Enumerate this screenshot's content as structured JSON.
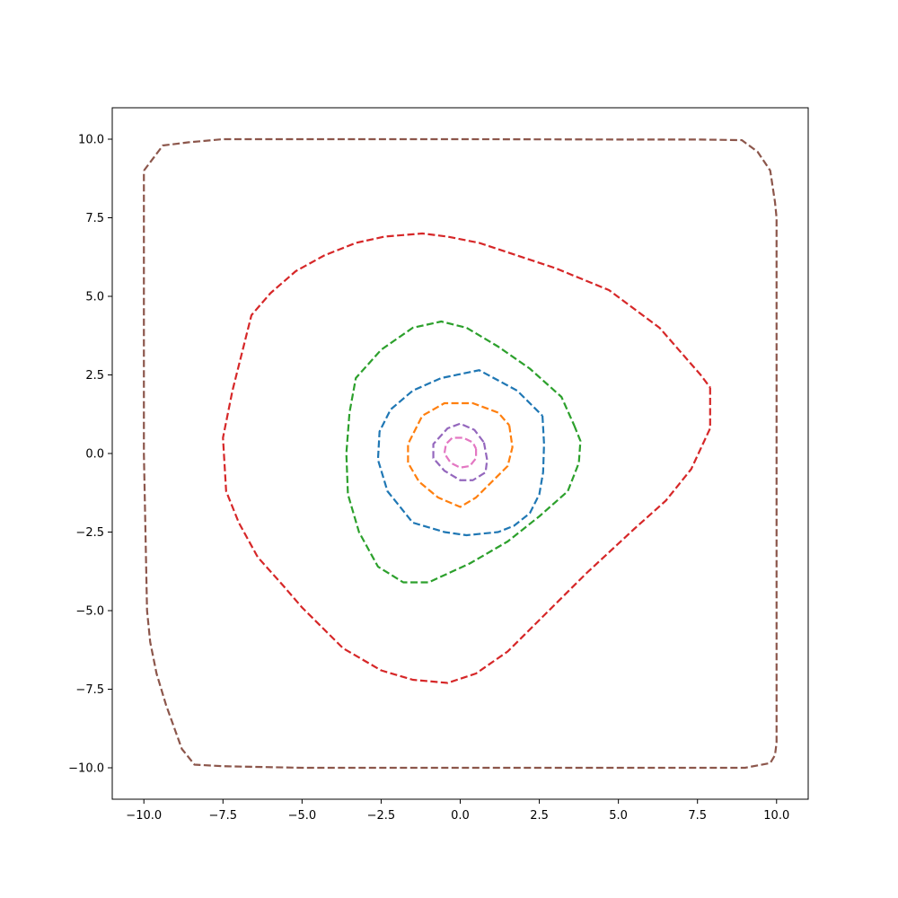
{
  "chart_data": {
    "type": "line",
    "title": "",
    "xlabel": "",
    "ylabel": "",
    "xlim": [
      -11,
      11
    ],
    "ylim": [
      -11,
      11
    ],
    "grid": false,
    "legend": "none",
    "xticks": [
      "−10.0",
      "−7.5",
      "−5.0",
      "−2.5",
      "0.0",
      "2.5",
      "5.0",
      "7.5",
      "10.0"
    ],
    "xtick_values": [
      -10,
      -7.5,
      -5,
      -2.5,
      0,
      2.5,
      5,
      7.5,
      10
    ],
    "yticks": [
      "−10.0",
      "−7.5",
      "−5.0",
      "−2.5",
      "0.0",
      "2.5",
      "5.0",
      "7.5",
      "10.0"
    ],
    "ytick_values": [
      -10,
      -7.5,
      -5,
      -2.5,
      0,
      2.5,
      5,
      7.5,
      10
    ],
    "line_style": "dashed",
    "series": [
      {
        "color": "#1f77b4",
        "x": [
          2.6,
          2.65,
          2.62,
          2.5,
          2.2,
          1.7,
          1.2,
          0.2,
          -0.5,
          -1.5,
          -2.3,
          -2.6,
          -2.55,
          -2.2,
          -1.5,
          -0.6,
          0.6,
          1.8,
          2.6
        ],
        "y": [
          1.2,
          0.3,
          -0.6,
          -1.3,
          -1.9,
          -2.3,
          -2.5,
          -2.6,
          -2.5,
          -2.2,
          -1.2,
          -0.2,
          0.7,
          1.4,
          2.0,
          2.4,
          2.65,
          2.0,
          1.2
        ]
      },
      {
        "color": "#ff7f0e",
        "x": [
          1.55,
          1.65,
          1.5,
          1.0,
          0.5,
          0.0,
          -0.7,
          -1.3,
          -1.65,
          -1.65,
          -1.2,
          -0.5,
          0.4,
          1.2,
          1.55
        ],
        "y": [
          0.9,
          0.2,
          -0.4,
          -0.9,
          -1.4,
          -1.7,
          -1.4,
          -0.9,
          -0.3,
          0.3,
          1.2,
          1.6,
          1.6,
          1.3,
          0.9
        ]
      },
      {
        "color": "#2ca02c",
        "x": [
          3.6,
          3.8,
          3.75,
          3.4,
          2.5,
          1.5,
          0.3,
          -1.0,
          -1.8,
          -2.6,
          -3.2,
          -3.55,
          -3.6,
          -3.5,
          -3.3,
          -2.5,
          -1.5,
          -0.6,
          0.2,
          1.2,
          2.2,
          3.2,
          3.6
        ],
        "y": [
          0.9,
          0.4,
          -0.3,
          -1.2,
          -2.0,
          -2.8,
          -3.5,
          -4.1,
          -4.1,
          -3.6,
          -2.5,
          -1.3,
          0.0,
          1.3,
          2.4,
          3.3,
          4.0,
          4.2,
          4.0,
          3.4,
          2.7,
          1.8,
          0.9
        ]
      },
      {
        "color": "#d62728",
        "x": [
          7.9,
          7.9,
          7.3,
          6.5,
          5.5,
          4.0,
          2.5,
          1.5,
          0.5,
          -0.4,
          -1.5,
          -2.5,
          -3.7,
          -4.4,
          -5.0,
          -5.6,
          -6.4,
          -7.0,
          -7.4,
          -7.5,
          -7.4,
          -7.2,
          -6.6,
          -6.0,
          -5.2,
          -4.3,
          -3.3,
          -2.4,
          -1.2,
          -0.4,
          0.6,
          1.8,
          3.0,
          4.7,
          6.3,
          7.6,
          7.9
        ],
        "y": [
          2.1,
          0.8,
          -0.5,
          -1.5,
          -2.4,
          -3.8,
          -5.3,
          -6.3,
          -7.0,
          -7.3,
          -7.2,
          -6.9,
          -6.2,
          -5.5,
          -4.9,
          -4.2,
          -3.3,
          -2.2,
          -1.2,
          0.5,
          1.0,
          2.0,
          4.4,
          5.1,
          5.8,
          6.3,
          6.7,
          6.9,
          7.0,
          6.9,
          6.7,
          6.3,
          5.9,
          5.2,
          4.0,
          2.5,
          2.1
        ]
      },
      {
        "color": "#9467bd",
        "x": [
          0.75,
          0.85,
          0.8,
          0.4,
          0.0,
          -0.5,
          -0.85,
          -0.85,
          -0.4,
          0.0,
          0.45,
          0.75
        ],
        "y": [
          0.35,
          -0.2,
          -0.6,
          -0.85,
          -0.85,
          -0.55,
          -0.15,
          0.3,
          0.8,
          0.95,
          0.75,
          0.35
        ]
      },
      {
        "color": "#8c564b",
        "x": [
          -10.0,
          -9.4,
          -8.6,
          -7.5,
          -5.0,
          0.0,
          5.0,
          7.5,
          8.9,
          9.4,
          9.8,
          9.95,
          10.0,
          10.0,
          9.95,
          9.8,
          9.0,
          7.5,
          5.0,
          0.0,
          -5.0,
          -7.5,
          -8.4,
          -8.8,
          -9.3,
          -9.6,
          -9.8,
          -9.9,
          -9.95,
          -10.0,
          -10.0
        ],
        "y": [
          9.0,
          9.8,
          9.9,
          10.0,
          10.0,
          10.0,
          9.99,
          9.99,
          9.97,
          9.6,
          9.0,
          8.0,
          7.5,
          -9.2,
          -9.6,
          -9.85,
          -10.0,
          -10.0,
          -10.0,
          -10.0,
          -10.0,
          -9.95,
          -9.9,
          -9.4,
          -8.0,
          -7.0,
          -6.0,
          -5.0,
          -2.5,
          0.0,
          9.0
        ]
      },
      {
        "color": "#e377c2",
        "x": [
          0.5,
          0.5,
          0.3,
          0.0,
          -0.3,
          -0.5,
          -0.45,
          -0.25,
          0.1,
          0.4,
          0.5
        ],
        "y": [
          0.15,
          -0.15,
          -0.4,
          -0.45,
          -0.3,
          0.0,
          0.3,
          0.5,
          0.5,
          0.35,
          0.15
        ]
      }
    ]
  }
}
